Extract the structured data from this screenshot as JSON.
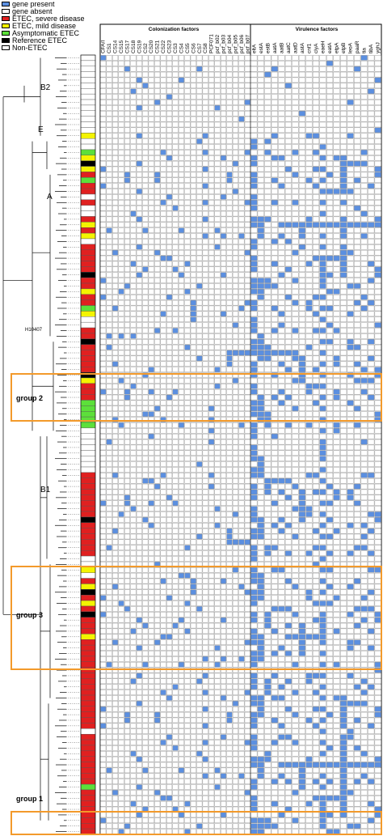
{
  "legend": [
    {
      "label": "gene present",
      "color": "#5b8fe0"
    },
    {
      "label": "gene absent",
      "color": "#ffffff"
    },
    {
      "label": "ETEC, severe disease",
      "color": "#e02020"
    },
    {
      "label": "ETEC, mild disease",
      "color": "#f4f400"
    },
    {
      "label": "Asymptomatic ETEC",
      "color": "#5ce03a"
    },
    {
      "label": "Reference ETEC",
      "color": "#000000"
    },
    {
      "label": "Non-ETEC",
      "color": "#ffffff"
    }
  ],
  "headers": {
    "colonization": "Colonization factors",
    "virulence": "Virulence factors"
  },
  "colonization_factors": [
    "CFA/I",
    "CS1",
    "CS14",
    "CS15",
    "CS17",
    "CS18",
    "CS19",
    "CS2",
    "CS20",
    "CS21",
    "CS22",
    "CS23",
    "CS3",
    "CS4",
    "CS5",
    "CS6",
    "CS7",
    "CS8",
    "PCF071",
    "pcf_b02",
    "pcf_b03",
    "pcf_b04",
    "pcf_b05",
    "pcf_b06",
    "pcf_b07"
  ],
  "virulence_factors": [
    "eltA",
    "estA",
    "estB",
    "aatA",
    "aatB",
    "aatC",
    "aatD",
    "astA",
    "cnf1",
    "clyA",
    "eaeH",
    "eatA",
    "etpA",
    "etpB",
    "leoA",
    "paaR",
    "tia",
    "tibA",
    "yghJ"
  ],
  "clade_labels": [
    "B2",
    "E",
    "A",
    "B1"
  ],
  "strain_labels": [
    "H10407"
  ],
  "groups": [
    "group 2",
    "group 3",
    "group 1"
  ],
  "rows": [
    "N",
    "N",
    "N",
    "N",
    "N",
    "N",
    "N",
    "N",
    "N",
    "N",
    "N",
    "N",
    "N",
    "N",
    "Y",
    "N",
    "N",
    "G",
    "Y",
    "K",
    "Y",
    "R",
    "G",
    "R",
    "R",
    "N",
    "R",
    "N",
    "N",
    "R",
    "Y",
    "R",
    "Y",
    "N",
    "R",
    "R",
    "R",
    "R",
    "R",
    "K",
    "R",
    "R",
    "Y",
    "R",
    "R",
    "G",
    "Y",
    "N",
    "N",
    "R",
    "R",
    "K",
    "R",
    "R",
    "R",
    "R",
    "R",
    "K",
    "Y",
    "R",
    "R",
    "R",
    "G",
    "G",
    "G",
    "G",
    "G",
    "N",
    "N",
    "N",
    "N",
    "N",
    "N",
    "N",
    "N",
    "R",
    "R",
    "R",
    "R",
    "R",
    "R",
    "R",
    "R",
    "K",
    "R",
    "R",
    "R",
    "R",
    "R",
    "R",
    "N",
    "N",
    "Y",
    "N",
    "R",
    "Y",
    "K",
    "R",
    "Y",
    "R",
    "K",
    "R",
    "R",
    "R",
    "Y",
    "R",
    "R",
    "R",
    "R",
    "R",
    "R",
    "R",
    "R",
    "R",
    "R",
    "R",
    "R",
    "R",
    "R",
    "R",
    "R",
    "N",
    "R",
    "R",
    "R",
    "R",
    "R",
    "R",
    "R",
    "R",
    "R",
    "G",
    "R",
    "R",
    "R",
    "R",
    "R",
    "R",
    "R",
    "R"
  ],
  "chart_data": {
    "type": "heatmap",
    "title": "",
    "x_groups": [
      {
        "label": "Colonization factors",
        "columns": [
          "CFA/I",
          "CS1",
          "CS14",
          "CS15",
          "CS17",
          "CS18",
          "CS19",
          "CS2",
          "CS20",
          "CS21",
          "CS22",
          "CS23",
          "CS3",
          "CS4",
          "CS5",
          "CS6",
          "CS7",
          "CS8",
          "PCF071",
          "pcf_b02",
          "pcf_b03",
          "pcf_b04",
          "pcf_b05",
          "pcf_b06",
          "pcf_b07"
        ]
      },
      {
        "label": "Virulence factors",
        "columns": [
          "eltA",
          "estA",
          "estB",
          "aatA",
          "aatB",
          "aatC",
          "aatD",
          "astA",
          "cnf1",
          "clyA",
          "eaeH",
          "eatA",
          "etpA",
          "etpB",
          "leoA",
          "paaR",
          "tia",
          "tibA",
          "yghJ"
        ]
      }
    ],
    "row_count": 138,
    "values_legend": {
      "1": "gene present",
      "0": "gene absent"
    }
  }
}
